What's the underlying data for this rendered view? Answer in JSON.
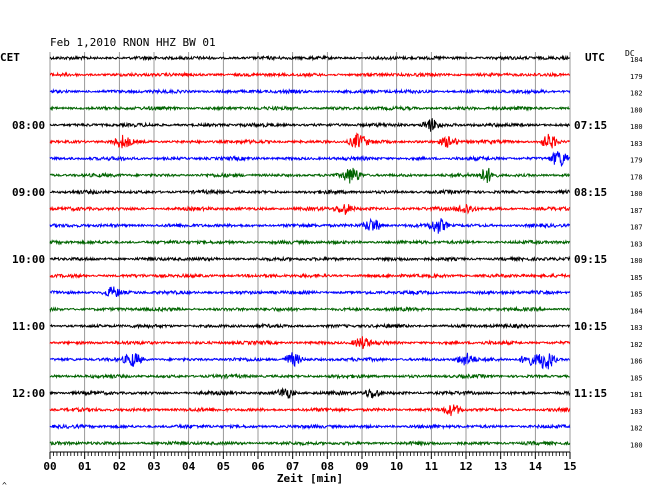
{
  "header": {
    "title": "Feb 1,2010   RNON HHZ BW 01",
    "left_tz": "CET",
    "right_tz": "UTC",
    "dc_label": "DC"
  },
  "left_labels": [
    {
      "row": 4,
      "text": "08:00"
    },
    {
      "row": 8,
      "text": "09:00"
    },
    {
      "row": 12,
      "text": "10:00"
    },
    {
      "row": 16,
      "text": "11:00"
    },
    {
      "row": 20,
      "text": "12:00"
    }
  ],
  "right_labels": [
    {
      "row": 4,
      "text": "07:15"
    },
    {
      "row": 8,
      "text": "08:15"
    },
    {
      "row": 12,
      "text": "09:15"
    },
    {
      "row": 16,
      "text": "10:15"
    },
    {
      "row": 20,
      "text": "11:15"
    }
  ],
  "footer_mark": "^",
  "colors": {
    "trace_cycle": [
      "#000000",
      "#ff0000",
      "#0000ff",
      "#006400"
    ],
    "grid": "#808080",
    "axis": "#000000"
  },
  "chart_data": {
    "type": "line",
    "xlabel": "Zeit [min]",
    "xlim": [
      0,
      15
    ],
    "x_ticks": [
      "00",
      "01",
      "02",
      "03",
      "04",
      "05",
      "06",
      "07",
      "08",
      "09",
      "10",
      "11",
      "12",
      "13",
      "14",
      "15"
    ],
    "dc_values": [
      "184",
      "179",
      "182",
      "180",
      "180",
      "183",
      "179",
      "178",
      "180",
      "187",
      "187",
      "183",
      "180",
      "185",
      "185",
      "184",
      "183",
      "182",
      "186",
      "185",
      "181",
      "183",
      "182",
      "180"
    ],
    "events": [
      {
        "row": 4,
        "minute": 11.0,
        "amp": 1.6
      },
      {
        "row": 5,
        "minute": 2.1,
        "amp": 1.4
      },
      {
        "row": 5,
        "minute": 8.9,
        "amp": 1.8
      },
      {
        "row": 5,
        "minute": 11.5,
        "amp": 1.3
      },
      {
        "row": 5,
        "minute": 14.4,
        "amp": 1.7
      },
      {
        "row": 6,
        "minute": 14.7,
        "amp": 2.2
      },
      {
        "row": 7,
        "minute": 8.7,
        "amp": 1.9
      },
      {
        "row": 7,
        "minute": 12.6,
        "amp": 1.8
      },
      {
        "row": 9,
        "minute": 8.5,
        "amp": 1.3
      },
      {
        "row": 9,
        "minute": 12.0,
        "amp": 1.3
      },
      {
        "row": 10,
        "minute": 9.3,
        "amp": 1.7
      },
      {
        "row": 10,
        "minute": 11.2,
        "amp": 1.8
      },
      {
        "row": 14,
        "minute": 1.8,
        "amp": 1.3
      },
      {
        "row": 17,
        "minute": 9.0,
        "amp": 1.3
      },
      {
        "row": 18,
        "minute": 2.4,
        "amp": 1.6
      },
      {
        "row": 18,
        "minute": 7.0,
        "amp": 1.6
      },
      {
        "row": 18,
        "minute": 12.0,
        "amp": 1.5
      },
      {
        "row": 18,
        "minute": 13.8,
        "amp": 1.4
      },
      {
        "row": 18,
        "minute": 14.3,
        "amp": 2.6
      },
      {
        "row": 20,
        "minute": 6.8,
        "amp": 1.3
      },
      {
        "row": 20,
        "minute": 9.3,
        "amp": 1.2
      },
      {
        "row": 21,
        "minute": 11.6,
        "amp": 1.2
      }
    ]
  }
}
